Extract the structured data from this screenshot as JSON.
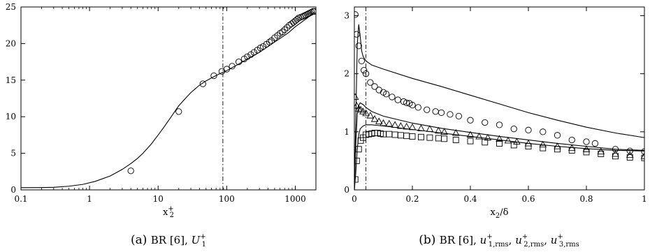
{
  "chart_data": [
    {
      "type": "scatter",
      "caption": {
        "label": "(a)",
        "text": "BR [6], ",
        "var": "U",
        "sub": "1",
        "sup": "+"
      },
      "xlabel": {
        "base": "x",
        "sub": "2",
        "sup": "+"
      },
      "ylabel": "",
      "xscale": "log",
      "xlim": [
        0.1,
        2000
      ],
      "ylim": [
        0,
        25
      ],
      "xticks": [
        0.1,
        1,
        10,
        100,
        1000
      ],
      "xtick_labels": [
        "0.1",
        "1",
        "10",
        "100",
        "1000"
      ],
      "yticks": [
        0,
        5,
        10,
        15,
        20,
        25
      ],
      "ytick_labels": [
        "0",
        "5",
        "10",
        "15",
        "20",
        "25"
      ],
      "vline_x": 88,
      "series": [
        {
          "kind": "line",
          "x": [
            0.1,
            0.2,
            0.3,
            0.5,
            0.8,
            1.2,
            2,
            3,
            4,
            5,
            6,
            8,
            10,
            12,
            15,
            20,
            25,
            30,
            40,
            50,
            60,
            80,
            100,
            150,
            200,
            300,
            400,
            600,
            800,
            1000,
            1500,
            1900
          ],
          "y": [
            0.3,
            0.32,
            0.35,
            0.5,
            0.75,
            1.15,
            1.9,
            2.8,
            3.6,
            4.3,
            5.0,
            6.3,
            7.5,
            8.5,
            9.8,
            11.5,
            12.5,
            13.3,
            14.3,
            14.9,
            15.3,
            15.9,
            16.3,
            17.2,
            17.9,
            18.8,
            19.6,
            20.7,
            21.5,
            22.3,
            23.5,
            24.3
          ]
        },
        {
          "kind": "circle",
          "x": [
            4,
            20,
            45,
            65,
            85,
            100,
            120,
            150,
            180,
            200,
            225,
            250,
            280,
            310,
            340,
            380,
            420,
            450,
            500,
            550,
            600,
            650,
            700,
            760,
            820,
            880,
            940,
            1000,
            1060,
            1120,
            1200,
            1280,
            1350,
            1420,
            1500,
            1570,
            1650,
            1730,
            1820,
            1900
          ],
          "y": [
            2.6,
            10.7,
            14.5,
            15.6,
            16.2,
            16.5,
            16.9,
            17.5,
            17.9,
            18.2,
            18.5,
            18.8,
            19.1,
            19.4,
            19.6,
            19.9,
            20.2,
            20.4,
            20.8,
            21.1,
            21.4,
            21.6,
            21.9,
            22.2,
            22.5,
            22.7,
            22.9,
            23.1,
            23.3,
            23.5,
            23.6,
            23.7,
            23.8,
            23.9,
            24.0,
            24.1,
            24.2,
            24.3,
            24.4,
            24.4
          ]
        }
      ]
    },
    {
      "type": "scatter",
      "caption": {
        "label": "(b)",
        "text": "BR [6], ",
        "terms": [
          {
            "var": "u",
            "sub": "1,rms",
            "sup": "+"
          },
          {
            "var": "u",
            "sub": "2,rms",
            "sup": "+"
          },
          {
            "var": "u",
            "sub": "3,rms",
            "sup": "+"
          }
        ]
      },
      "xlabel": {
        "base": "x",
        "sub": "2",
        "rest": "/δ"
      },
      "ylabel": "",
      "xscale": "linear",
      "xlim": [
        0,
        1
      ],
      "ylim": [
        0,
        3.15
      ],
      "xticks": [
        0,
        0.2,
        0.4,
        0.6,
        0.8,
        1
      ],
      "xtick_labels": [
        "0",
        "0.2",
        "0.4",
        "0.6",
        "0.8",
        "1"
      ],
      "yticks": [
        0,
        1,
        2,
        3
      ],
      "ytick_labels": [
        "0",
        "1",
        "2",
        "3"
      ],
      "vline_x": 0.04,
      "series": [
        {
          "kind": "line",
          "x": [
            0,
            0.005,
            0.01,
            0.015,
            0.02,
            0.025,
            0.03,
            0.04,
            0.06,
            0.1,
            0.2,
            0.3,
            0.4,
            0.5,
            0.6,
            0.7,
            0.8,
            0.9,
            1.0
          ],
          "y": [
            0,
            1.2,
            2.5,
            2.85,
            2.65,
            2.4,
            2.3,
            2.22,
            2.15,
            2.08,
            1.92,
            1.78,
            1.63,
            1.48,
            1.33,
            1.2,
            1.08,
            0.98,
            0.9
          ]
        },
        {
          "kind": "line",
          "x": [
            0,
            0.005,
            0.01,
            0.015,
            0.02,
            0.03,
            0.04,
            0.06,
            0.1,
            0.2,
            0.3,
            0.4,
            0.5,
            0.6,
            0.7,
            0.8,
            0.9,
            1.0
          ],
          "y": [
            0,
            0.8,
            1.3,
            1.45,
            1.5,
            1.47,
            1.42,
            1.35,
            1.27,
            1.15,
            1.06,
            0.99,
            0.92,
            0.86,
            0.8,
            0.75,
            0.7,
            0.68
          ]
        },
        {
          "kind": "line",
          "x": [
            0,
            0.005,
            0.01,
            0.015,
            0.02,
            0.03,
            0.04,
            0.06,
            0.1,
            0.2,
            0.3,
            0.4,
            0.5,
            0.6,
            0.7,
            0.8,
            0.9,
            1.0
          ],
          "y": [
            0,
            0.3,
            0.7,
            0.95,
            1.05,
            1.1,
            1.12,
            1.12,
            1.1,
            1.04,
            0.98,
            0.92,
            0.86,
            0.8,
            0.75,
            0.71,
            0.68,
            0.67
          ]
        },
        {
          "kind": "circle",
          "x": [
            0.003,
            0.008,
            0.015,
            0.025,
            0.033,
            0.04,
            0.055,
            0.07,
            0.085,
            0.1,
            0.11,
            0.13,
            0.15,
            0.17,
            0.18,
            0.19,
            0.2,
            0.22,
            0.25,
            0.28,
            0.3,
            0.33,
            0.36,
            0.4,
            0.45,
            0.5,
            0.55,
            0.6,
            0.65,
            0.7,
            0.75,
            0.8,
            0.83,
            0.9,
            0.95,
            1.0
          ],
          "y": [
            3.02,
            2.68,
            2.48,
            2.22,
            2.06,
            2.0,
            1.85,
            1.78,
            1.72,
            1.68,
            1.65,
            1.6,
            1.55,
            1.52,
            1.5,
            1.49,
            1.46,
            1.42,
            1.38,
            1.35,
            1.33,
            1.3,
            1.27,
            1.2,
            1.16,
            1.12,
            1.05,
            1.03,
            1.0,
            0.94,
            0.86,
            0.83,
            0.8,
            0.7,
            0.67,
            0.66
          ]
        },
        {
          "kind": "triangle",
          "x": [
            0.003,
            0.008,
            0.015,
            0.022,
            0.03,
            0.04,
            0.055,
            0.07,
            0.085,
            0.1,
            0.12,
            0.14,
            0.16,
            0.18,
            0.2,
            0.23,
            0.26,
            0.29,
            0.31,
            0.35,
            0.4,
            0.43,
            0.46,
            0.5,
            0.53,
            0.56,
            0.6,
            0.65,
            0.7,
            0.75,
            0.8,
            0.85,
            0.9,
            0.95,
            1.0
          ],
          "y": [
            1.6,
            1.45,
            1.4,
            1.38,
            1.35,
            1.32,
            1.28,
            1.22,
            1.18,
            1.15,
            1.14,
            1.12,
            1.1,
            1.09,
            1.08,
            1.06,
            1.05,
            1.02,
            1.0,
            0.98,
            0.95,
            0.92,
            0.9,
            0.88,
            0.85,
            0.83,
            0.8,
            0.78,
            0.75,
            0.72,
            0.7,
            0.66,
            0.62,
            0.6,
            0.58
          ]
        },
        {
          "kind": "square",
          "x": [
            0.003,
            0.008,
            0.015,
            0.022,
            0.03,
            0.04,
            0.05,
            0.06,
            0.07,
            0.08,
            0.09,
            0.1,
            0.12,
            0.14,
            0.16,
            0.18,
            0.2,
            0.23,
            0.26,
            0.29,
            0.31,
            0.35,
            0.4,
            0.45,
            0.5,
            0.55,
            0.6,
            0.65,
            0.7,
            0.75,
            0.8,
            0.85,
            0.9,
            0.95,
            1.0
          ],
          "y": [
            0.18,
            0.5,
            0.7,
            0.85,
            0.9,
            0.95,
            0.96,
            0.97,
            0.98,
            0.98,
            0.97,
            0.96,
            0.96,
            0.95,
            0.94,
            0.93,
            0.92,
            0.91,
            0.9,
            0.89,
            0.88,
            0.86,
            0.84,
            0.82,
            0.8,
            0.77,
            0.75,
            0.72,
            0.7,
            0.68,
            0.65,
            0.62,
            0.58,
            0.56,
            0.55
          ]
        }
      ]
    }
  ]
}
